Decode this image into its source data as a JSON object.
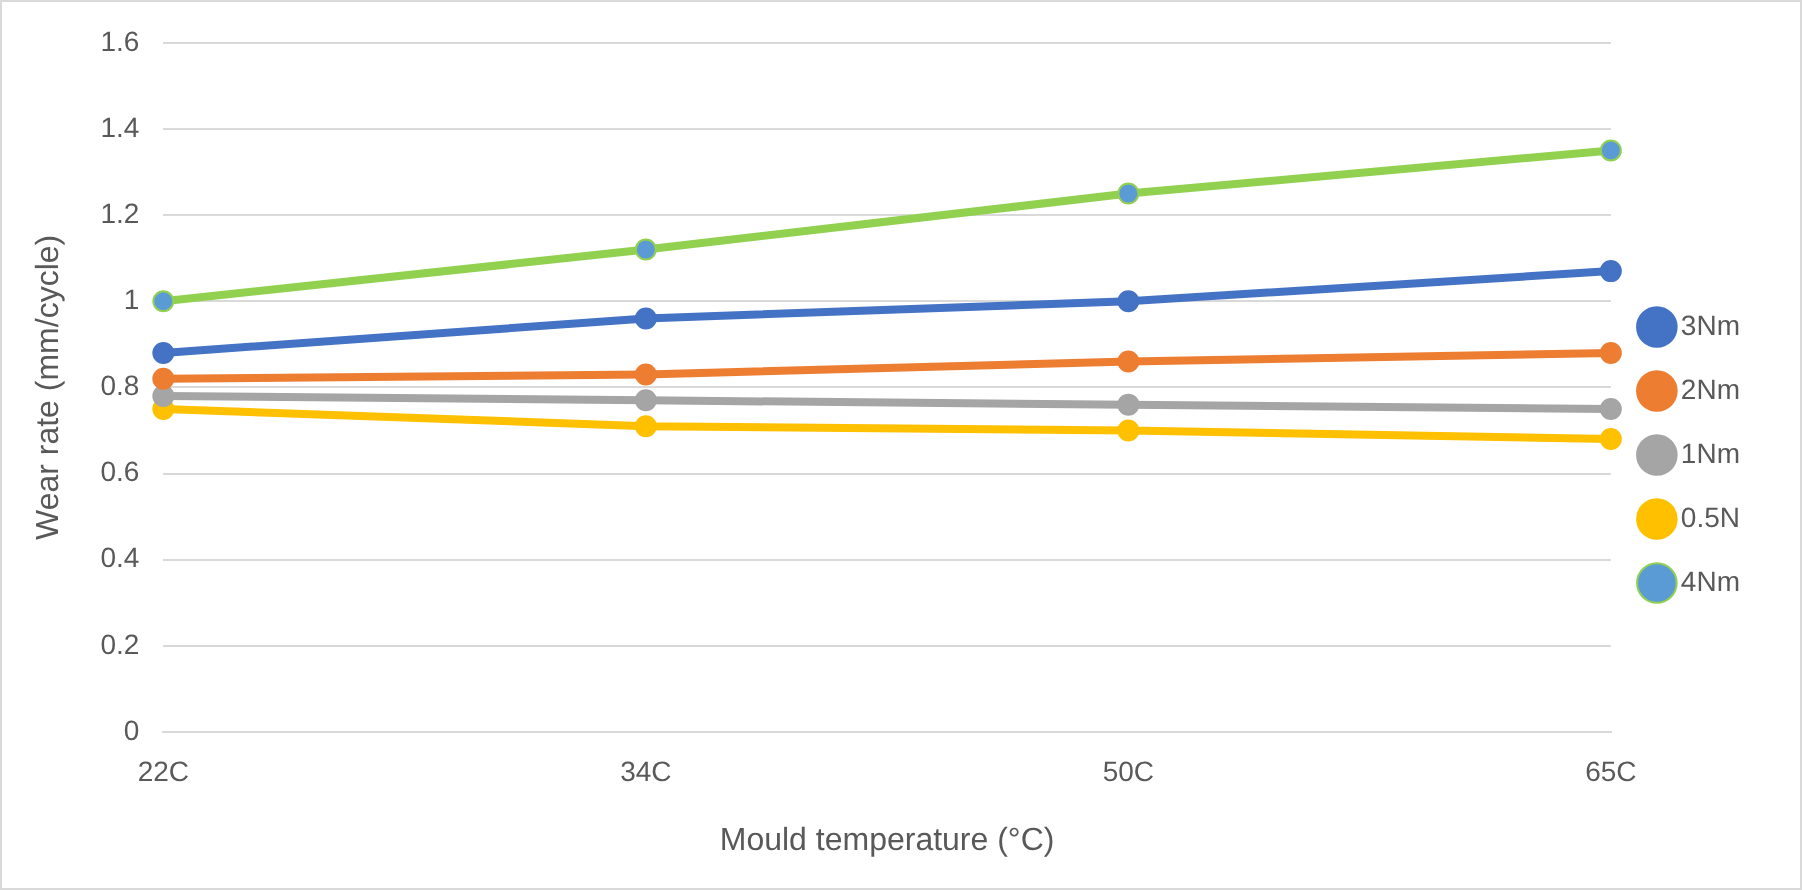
{
  "chart_data": {
    "type": "line",
    "xlabel": "Mould temperature (°C)",
    "ylabel": "Wear rate (mm/cycle)",
    "categories": [
      "22C",
      "34C",
      "50C",
      "65C"
    ],
    "series": [
      {
        "name": "3Nm",
        "color": "#4472c4",
        "values": [
          0.88,
          0.96,
          1.0,
          1.07
        ]
      },
      {
        "name": "2Nm",
        "color": "#ed7d31",
        "values": [
          0.82,
          0.83,
          0.86,
          0.88
        ]
      },
      {
        "name": "1Nm",
        "color": "#a5a5a5",
        "values": [
          0.78,
          0.77,
          0.76,
          0.75
        ]
      },
      {
        "name": "0.5N",
        "color": "#ffc000",
        "values": [
          0.75,
          0.71,
          0.7,
          0.68
        ]
      },
      {
        "name": "4Nm",
        "color": "#92d050",
        "colors": [
          "#5b9bd5",
          "#5b9bd5",
          "#5b9bd5",
          "#5b9bd5"
        ],
        "values": [
          1.0,
          1.12,
          1.25,
          1.35
        ]
      }
    ],
    "ylim": [
      0,
      1.6
    ],
    "yticks": [
      0,
      0.2,
      0.4,
      0.6,
      0.8,
      1,
      1.2,
      1.4,
      1.6
    ],
    "grid": "y",
    "legend": "right",
    "marker": "circle",
    "line_style": "solid"
  }
}
